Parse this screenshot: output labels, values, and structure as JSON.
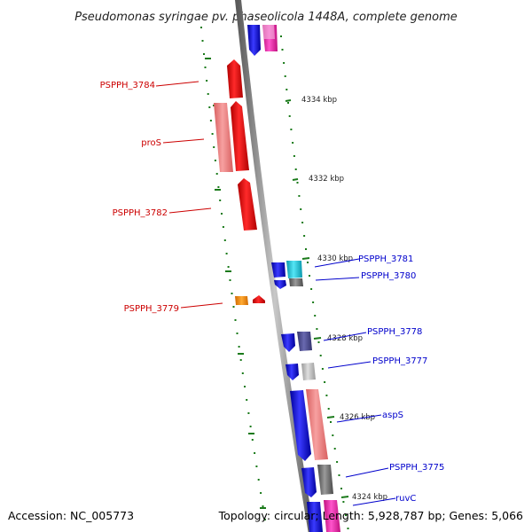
{
  "title": "Pseudomonas syringae pv. phaseolicola 1448A, complete genome",
  "footer": {
    "accession": "Accession: NC_005773",
    "topology": "Topology: circular; Length: 5,928,787 bp; Genes: 5,066"
  },
  "scale_labels": [
    "4334 kbp",
    "4332 kbp",
    "4330 kbp",
    "4328 kbp",
    "4326 kbp",
    "4324 kbp"
  ],
  "genes_left": [
    {
      "name": "PSPPH_3784"
    },
    {
      "name": "proS"
    },
    {
      "name": "PSPPH_3782"
    },
    {
      "name": "PSPPH_3779"
    }
  ],
  "genes_right": [
    {
      "name": "PSPPH_3781"
    },
    {
      "name": "PSPPH_3780"
    },
    {
      "name": "PSPPH_3778"
    },
    {
      "name": "PSPPH_3777"
    },
    {
      "name": "aspS"
    },
    {
      "name": "PSPPH_3775"
    },
    {
      "name": "ruvC"
    }
  ],
  "colors": {
    "red_gene": "#e60000",
    "pink_gene": "#f07a7a",
    "blue_gene": "#1515e6",
    "magenta_gene": "#ee22aa",
    "cyan_gene": "#22c8dd",
    "gray_gene": "#777777",
    "orange_gene": "#ff8800",
    "backbone": "#888888",
    "tick": "#1a7a1a",
    "label_red": "#cc0000",
    "label_blue": "#0000cc"
  }
}
